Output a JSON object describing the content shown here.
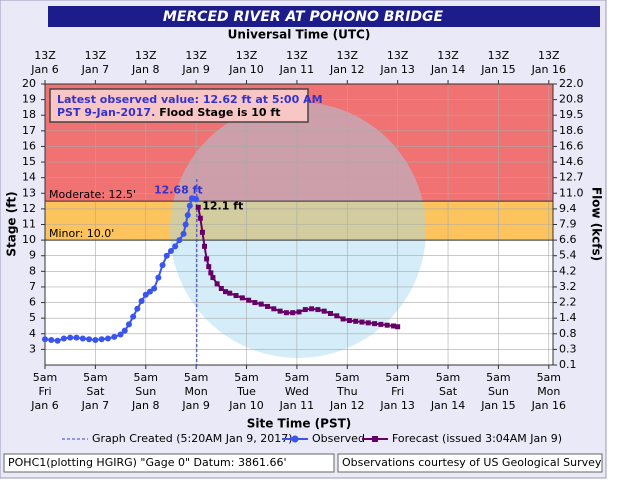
{
  "chart_data": {
    "type": "line",
    "title": "MERCED RIVER AT POHONO BRIDGE",
    "top_axis_title": "Universal Time (UTC)",
    "top_ticks": [
      "13Z",
      "13Z",
      "13Z",
      "13Z",
      "13Z",
      "13Z",
      "13Z",
      "13Z",
      "13Z",
      "13Z",
      "13Z"
    ],
    "top_dates": [
      "Jan 6",
      "Jan 7",
      "Jan 8",
      "Jan 9",
      "Jan 10",
      "Jan 11",
      "Jan 12",
      "Jan 13",
      "Jan 14",
      "Jan 15",
      "Jan 16"
    ],
    "x_title": "Site Time (PST)",
    "xlim": [
      0,
      242
    ],
    "xticks": [
      {
        "value": 0,
        "label": "5am"
      },
      {
        "value": 24,
        "label": "5am"
      },
      {
        "value": 48,
        "label": "5am"
      },
      {
        "value": 72,
        "label": "5am"
      },
      {
        "value": 96,
        "label": "5am"
      },
      {
        "value": 120,
        "label": "5am"
      },
      {
        "value": 144,
        "label": "5am"
      },
      {
        "value": 168,
        "label": "5am"
      },
      {
        "value": 192,
        "label": "5am"
      },
      {
        "value": 216,
        "label": "5am"
      },
      {
        "value": 240,
        "label": "5am"
      }
    ],
    "xtick_days": [
      "Fri",
      "Sat",
      "Sun",
      "Mon",
      "Tue",
      "Wed",
      "Thu",
      "Fri",
      "Sat",
      "Sun",
      "Mon"
    ],
    "xtick_dates": [
      "Jan 6",
      "Jan 7",
      "Jan 8",
      "Jan 9",
      "Jan 10",
      "Jan 11",
      "Jan 12",
      "Jan 13",
      "Jan 14",
      "Jan 15",
      "Jan 16"
    ],
    "y_title": "Stage (ft)",
    "ylim": [
      2,
      20
    ],
    "yticks": [
      3,
      4,
      5,
      6,
      7,
      8,
      9,
      10,
      11,
      12,
      13,
      14,
      15,
      16,
      17,
      18,
      19,
      20
    ],
    "y2_title": "Flow (kcfs)",
    "y2ticks": [
      0.1,
      0.3,
      0.8,
      1.4,
      2.2,
      3.2,
      4.2,
      5.4,
      6.6,
      7.9,
      9.4,
      {
        "value": 11,
        "label": "11.0"
      },
      12.7,
      14.6,
      16.6,
      18.6,
      19.5,
      20.8,
      {
        "value": 22,
        "label": "22.0"
      }
    ],
    "y2tick_stage": [
      2,
      3,
      4,
      5,
      6,
      7,
      8,
      9,
      10,
      11,
      12,
      13,
      14,
      15,
      16,
      17,
      18,
      19,
      20
    ],
    "grid": true,
    "flood_levels": [
      {
        "label": "Moderate: 12.5'",
        "value": 12.5,
        "color": "#f07272"
      },
      {
        "label": "Minor: 10.0'",
        "value": 10,
        "color": "#fdc35c"
      }
    ],
    "info": [
      "Latest observed value: 12.62 ft at 5:00 AM",
      "PST 9-Jan-2017.",
      "Flood Stage is 10 ft"
    ],
    "created": {
      "label": "Graph Created (5:20AM Jan 9, 2017)",
      "x": 72.33,
      "color": "#3344dd"
    },
    "series": [
      {
        "name": "Observed",
        "color": "#3a55ee",
        "marker": "circle",
        "x": [
          0,
          3,
          6,
          9,
          12,
          15,
          18,
          21,
          24,
          27,
          30,
          33,
          36,
          38,
          40,
          42,
          44,
          46,
          48,
          50,
          52,
          54,
          56,
          58,
          60,
          62,
          64,
          66,
          67,
          68,
          69,
          70,
          71,
          72
        ],
        "values": [
          3.65,
          3.6,
          3.55,
          3.7,
          3.75,
          3.75,
          3.7,
          3.65,
          3.6,
          3.65,
          3.7,
          3.8,
          3.95,
          4.2,
          4.6,
          5.1,
          5.6,
          6.1,
          6.5,
          6.7,
          6.9,
          7.6,
          8.4,
          9.0,
          9.3,
          9.6,
          10.0,
          10.4,
          11.0,
          11.6,
          12.2,
          12.68,
          12.65,
          12.62
        ],
        "value_labels": [
          null,
          null,
          null,
          null,
          null,
          null,
          null,
          null,
          null,
          null,
          null,
          null,
          null,
          null,
          null,
          null,
          null,
          null,
          null,
          null,
          null,
          null,
          null,
          null,
          null,
          null,
          null,
          null,
          null,
          null,
          null,
          "12.68 ft",
          null,
          null
        ]
      },
      {
        "name": "Forecast (issued 3:04AM Jan 9)",
        "color": "#660066",
        "marker": "square",
        "x": [
          73,
          74,
          75,
          76,
          77,
          78,
          79,
          80,
          82,
          84,
          86,
          88,
          91,
          94,
          97,
          100,
          103,
          106,
          109,
          112,
          115,
          118,
          121,
          124,
          127,
          130,
          133,
          136,
          139,
          142,
          145,
          148,
          151,
          154,
          157,
          160,
          163,
          166,
          168
        ],
        "values": [
          12.1,
          11.4,
          10.5,
          9.6,
          8.8,
          8.3,
          7.9,
          7.6,
          7.2,
          6.9,
          6.7,
          6.6,
          6.45,
          6.3,
          6.15,
          6.0,
          5.9,
          5.75,
          5.6,
          5.45,
          5.35,
          5.35,
          5.4,
          5.55,
          5.6,
          5.55,
          5.45,
          5.3,
          5.15,
          4.95,
          4.85,
          4.8,
          4.75,
          4.7,
          4.65,
          4.6,
          4.55,
          4.5,
          4.45
        ],
        "value_labels": [
          "12.1 ft",
          null,
          null,
          null,
          null,
          null,
          null,
          null,
          null,
          null,
          null,
          null,
          null,
          null,
          null,
          null,
          null,
          null,
          null,
          null,
          null,
          null,
          null,
          null,
          null,
          null,
          null,
          null,
          null,
          null,
          null,
          null,
          null,
          null,
          null,
          null,
          null,
          null,
          null
        ]
      }
    ],
    "footer_left": "POHC1(plotting HGIRG) \"Gage 0\" Datum: 3861.66'",
    "footer_right": "Observations courtesy of US Geological Survey"
  }
}
